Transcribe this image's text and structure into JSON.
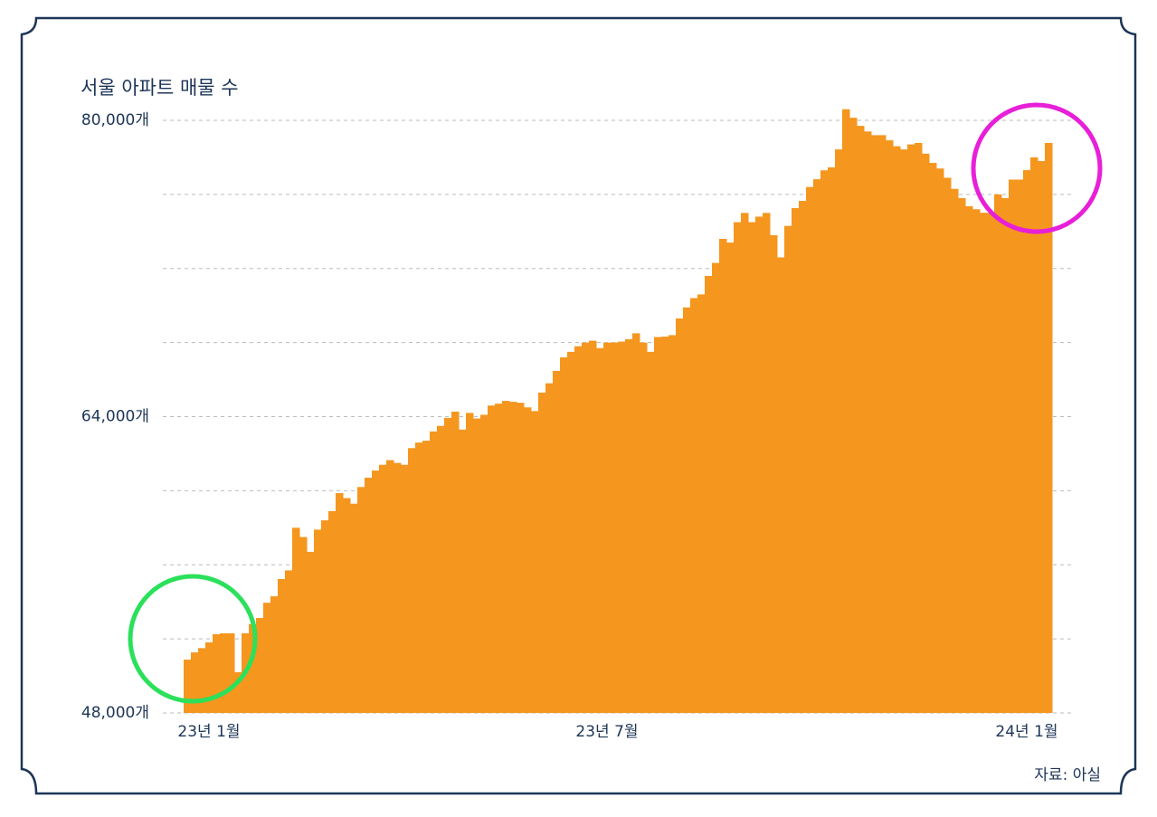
{
  "chart_data": {
    "type": "bar",
    "title": "서울 아파트 매물 수",
    "source": "자료: 아실",
    "categories": [
      null,
      null,
      null,
      "23년 1월",
      null,
      null,
      null,
      null,
      null,
      null,
      null,
      null,
      null,
      null,
      null,
      null,
      null,
      null,
      null,
      null,
      null,
      null,
      null,
      null,
      null,
      null,
      null,
      null,
      null,
      null,
      null,
      null,
      null,
      null,
      null,
      null,
      null,
      null,
      null,
      null,
      null,
      null,
      null,
      null,
      null,
      null,
      null,
      null,
      null,
      null,
      null,
      null,
      null,
      null,
      null,
      null,
      null,
      null,
      "23년 7월",
      null,
      null,
      null,
      null,
      null,
      null,
      null,
      null,
      null,
      null,
      null,
      null,
      null,
      null,
      null,
      null,
      null,
      null,
      null,
      null,
      null,
      null,
      null,
      null,
      null,
      null,
      null,
      null,
      null,
      null,
      null,
      null,
      null,
      null,
      null,
      null,
      null,
      null,
      null,
      null,
      null,
      null,
      null,
      null,
      null,
      null,
      null,
      null,
      null,
      null,
      null,
      null,
      null,
      null,
      null,
      null,
      null,
      "24년 1월",
      null,
      null,
      null
    ],
    "values": [
      50880,
      51270,
      51500,
      51810,
      52250,
      52300,
      52300,
      50200,
      52300,
      52800,
      53130,
      53950,
      54300,
      55230,
      55700,
      58000,
      57500,
      56700,
      57900,
      58400,
      58900,
      59870,
      59600,
      59300,
      60200,
      60700,
      61090,
      61400,
      61650,
      61500,
      61400,
      62300,
      62600,
      62700,
      63200,
      63500,
      63930,
      64270,
      63300,
      64200,
      63900,
      64100,
      64600,
      64700,
      64850,
      64800,
      64750,
      64500,
      64300,
      65300,
      65800,
      66470,
      67200,
      67500,
      67800,
      68000,
      68100,
      67700,
      68000,
      68000,
      68050,
      68180,
      68500,
      68000,
      67500,
      68300,
      68320,
      68400,
      69300,
      69900,
      70400,
      70600,
      71600,
      72300,
      73600,
      73400,
      74500,
      75000,
      74500,
      74800,
      75000,
      73800,
      72600,
      74300,
      75260,
      75650,
      76400,
      76820,
      77300,
      77460,
      78430,
      80600,
      80140,
      79700,
      79400,
      79200,
      79200,
      78920,
      78600,
      78430,
      78700,
      78780,
      78200,
      77700,
      77400,
      76900,
      76300,
      75800,
      75360,
      75200,
      75010,
      75000,
      76000,
      75800,
      76800,
      76800,
      77310,
      78000,
      77800,
      78780
    ],
    "color": "#f5961f",
    "ylim": [
      48000,
      80000
    ],
    "yticks": [
      {
        "value": 80000,
        "label": "80,000개"
      },
      {
        "value": 64000,
        "label": "64,000개"
      },
      {
        "value": 48000,
        "label": "48,000개"
      }
    ],
    "ygrid": [
      48000,
      52000,
      56000,
      60000,
      64000,
      68000,
      72000,
      76000,
      80000
    ],
    "grid": true
  }
}
